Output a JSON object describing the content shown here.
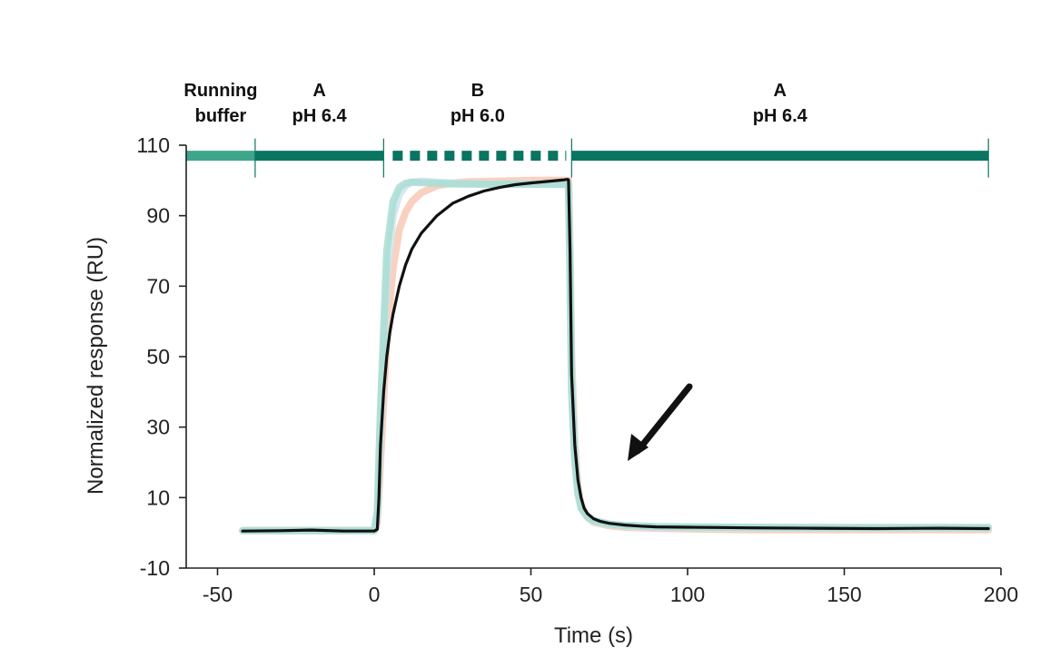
{
  "chart_data": {
    "type": "line",
    "title": "",
    "xlabel": "Time (s)",
    "ylabel": "Normalized response (RU)",
    "xlim": [
      -60,
      200
    ],
    "ylim": [
      -10,
      110
    ],
    "xticks": [
      -50,
      0,
      50,
      100,
      150,
      200
    ],
    "yticks": [
      -10,
      10,
      30,
      50,
      70,
      90,
      110
    ],
    "grid": false,
    "legend": "none",
    "phases": [
      {
        "line1": "Running",
        "line2": "buffer",
        "start": -60,
        "end": -38,
        "style": "solid-light",
        "color": "#3da58a"
      },
      {
        "line1": "A",
        "line2": "pH 6.4",
        "start": -38,
        "end": 3,
        "style": "solid",
        "color": "#0a7560"
      },
      {
        "line1": "B",
        "line2": "pH 6.0",
        "start": 3,
        "end": 63,
        "style": "dashed",
        "color": "#0a7560"
      },
      {
        "line1": "A",
        "line2": "pH 6.4",
        "start": 63,
        "end": 196,
        "style": "solid",
        "color": "#0a7560"
      }
    ],
    "phase_bar_y": 107,
    "series": [
      {
        "color": "#f7c9b5",
        "x": [
          -42,
          0,
          1,
          2,
          4,
          6,
          8,
          10,
          12,
          15,
          20,
          25,
          30,
          40,
          50,
          62,
          62.5,
          63,
          64,
          65,
          66,
          68,
          70,
          75,
          80,
          90,
          100,
          120,
          140,
          160,
          180,
          196
        ],
        "y": [
          0.6,
          0.6,
          3,
          20,
          55,
          75,
          86,
          91,
          94,
          96.5,
          98.5,
          99.3,
          99.6,
          99.8,
          100,
          100,
          80,
          50,
          25,
          13,
          8,
          4.5,
          3,
          2,
          1.6,
          1.3,
          1.1,
          0.9,
          0.9,
          0.9,
          0.9,
          0.9
        ]
      },
      {
        "color": "#cfe4ec",
        "x": [
          -42,
          0,
          1,
          2,
          4,
          6,
          8,
          10,
          12,
          15,
          20,
          25,
          30,
          40,
          50,
          62,
          62.5,
          63,
          64,
          65,
          66,
          68,
          70,
          75,
          80,
          90,
          100,
          120,
          140,
          160,
          180,
          196
        ],
        "y": [
          0.6,
          0.6,
          5,
          30,
          72,
          90,
          96,
          98.5,
          99.5,
          99.8,
          99.5,
          99.3,
          99,
          99,
          99,
          99,
          75,
          45,
          22,
          12,
          7.5,
          4.5,
          3.2,
          2.3,
          1.9,
          1.6,
          1.5,
          1.4,
          1.3,
          1.3,
          1.3,
          1.3
        ]
      },
      {
        "color": "#a9ddd2",
        "x": [
          -42,
          0,
          1,
          2,
          4,
          6,
          8,
          10,
          12,
          15,
          20,
          25,
          30,
          40,
          50,
          62,
          62.5,
          63,
          64,
          65,
          66,
          68,
          70,
          75,
          80,
          90,
          100,
          120,
          140,
          160,
          180,
          196
        ],
        "y": [
          0.6,
          0.6,
          6,
          35,
          80,
          94,
          98,
          99.2,
          99.5,
          99.4,
          99.2,
          99,
          99,
          98.9,
          98.9,
          98.9,
          72,
          40,
          20,
          11,
          7,
          4.5,
          3.5,
          2.5,
          2.1,
          1.8,
          1.7,
          1.6,
          1.5,
          1.5,
          1.5,
          1.5
        ]
      },
      {
        "color": "#111111",
        "x": [
          -42,
          -30,
          -20,
          -10,
          0,
          1,
          1.5,
          2,
          3,
          4,
          5,
          6,
          8,
          10,
          12,
          15,
          20,
          25,
          30,
          35,
          40,
          45,
          50,
          55,
          60,
          61.5,
          62,
          62.5,
          63,
          64,
          65,
          66,
          67,
          68,
          70,
          72,
          75,
          80,
          85,
          90,
          100,
          110,
          120,
          140,
          160,
          180,
          196
        ],
        "y": [
          0.5,
          0.6,
          0.8,
          0.5,
          0.5,
          1,
          10,
          25,
          40,
          50,
          57,
          62,
          70,
          76,
          80.5,
          85,
          90,
          93.5,
          95.5,
          97,
          98,
          98.8,
          99.3,
          99.7,
          100.1,
          100.3,
          100.2,
          80,
          45,
          25,
          15,
          10,
          7,
          5.5,
          4,
          3.3,
          2.7,
          2.2,
          1.9,
          1.7,
          1.6,
          1.5,
          1.4,
          1.3,
          1.2,
          1.3,
          1.2
        ]
      }
    ]
  }
}
